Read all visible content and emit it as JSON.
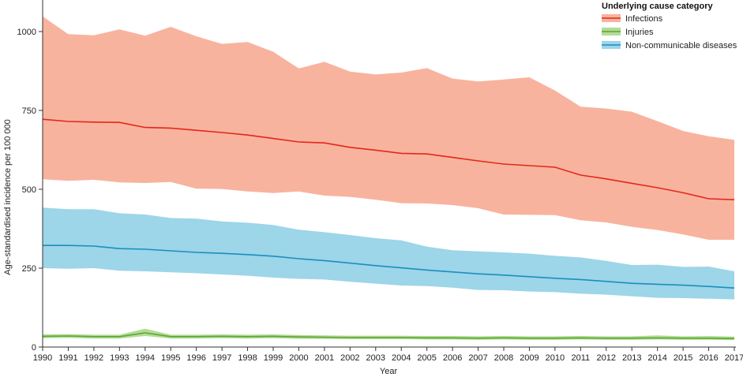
{
  "chart_data": {
    "type": "area",
    "xlabel": "Year",
    "ylabel": "Age-standardised incidence per 100 000",
    "ylim": [
      0,
      1000
    ],
    "yticks": [
      0,
      250,
      500,
      750,
      1000
    ],
    "ytick_labels": [
      "0",
      "250",
      "500",
      "750",
      "1000"
    ],
    "x": [
      1990,
      1991,
      1992,
      1993,
      1994,
      1995,
      1996,
      1997,
      1998,
      1999,
      2000,
      2001,
      2002,
      2003,
      2004,
      2005,
      2006,
      2007,
      2008,
      2009,
      2010,
      2011,
      2012,
      2013,
      2014,
      2015,
      2016,
      2017
    ],
    "grid": false,
    "legend": {
      "title": "Underlying cause category",
      "position": "top-right"
    },
    "series": [
      {
        "name": "Infections",
        "line_color": "#e3271c",
        "band_color": "#f8b39e",
        "values": [
          722,
          715,
          713,
          712,
          696,
          694,
          687,
          680,
          672,
          661,
          650,
          647,
          633,
          624,
          614,
          612,
          601,
          590,
          580,
          575,
          570,
          545,
          533,
          519,
          505,
          489,
          470,
          467
        ],
        "lower": [
          532,
          527,
          530,
          522,
          520,
          523,
          502,
          501,
          493,
          488,
          493,
          480,
          476,
          467,
          456,
          455,
          450,
          440,
          420,
          419,
          418,
          402,
          395,
          381,
          371,
          357,
          340,
          340
        ],
        "upper": [
          1048,
          992,
          988,
          1007,
          987,
          1015,
          985,
          961,
          967,
          936,
          883,
          904,
          873,
          864,
          870,
          884,
          851,
          842,
          848,
          855,
          813,
          762,
          756,
          746,
          716,
          685,
          668,
          657
        ]
      },
      {
        "name": "Injuries",
        "line_color": "#5aa832",
        "band_color": "#b3db96",
        "values": [
          34,
          35,
          33,
          33,
          45,
          33,
          33,
          34,
          33,
          34,
          32,
          31,
          30,
          30,
          30,
          29,
          29,
          28,
          29,
          28,
          28,
          29,
          28,
          28,
          29,
          28,
          28,
          27
        ],
        "lower": [
          28,
          29,
          27,
          27,
          35,
          27,
          27,
          28,
          27,
          28,
          26,
          26,
          25,
          25,
          25,
          24,
          24,
          23,
          24,
          23,
          23,
          24,
          23,
          23,
          24,
          23,
          23,
          22
        ],
        "upper": [
          40,
          41,
          39,
          39,
          58,
          39,
          39,
          40,
          39,
          40,
          38,
          37,
          36,
          36,
          36,
          35,
          35,
          34,
          35,
          34,
          34,
          35,
          34,
          34,
          37,
          34,
          35,
          33
        ]
      },
      {
        "name": "Non-communicable diseases",
        "line_color": "#1a8fbd",
        "band_color": "#9dd5e9",
        "values": [
          322,
          322,
          320,
          312,
          310,
          305,
          300,
          297,
          293,
          288,
          280,
          274,
          266,
          258,
          251,
          244,
          238,
          232,
          228,
          223,
          218,
          214,
          208,
          202,
          199,
          196,
          192,
          187
        ],
        "lower": [
          250,
          248,
          250,
          242,
          240,
          237,
          234,
          230,
          226,
          220,
          216,
          214,
          207,
          201,
          195,
          193,
          188,
          181,
          180,
          176,
          174,
          169,
          166,
          161,
          156,
          155,
          153,
          151
        ],
        "upper": [
          442,
          437,
          437,
          424,
          420,
          409,
          407,
          398,
          394,
          387,
          372,
          364,
          355,
          345,
          338,
          318,
          307,
          303,
          300,
          296,
          289,
          284,
          273,
          260,
          261,
          254,
          255,
          240
        ]
      }
    ]
  }
}
